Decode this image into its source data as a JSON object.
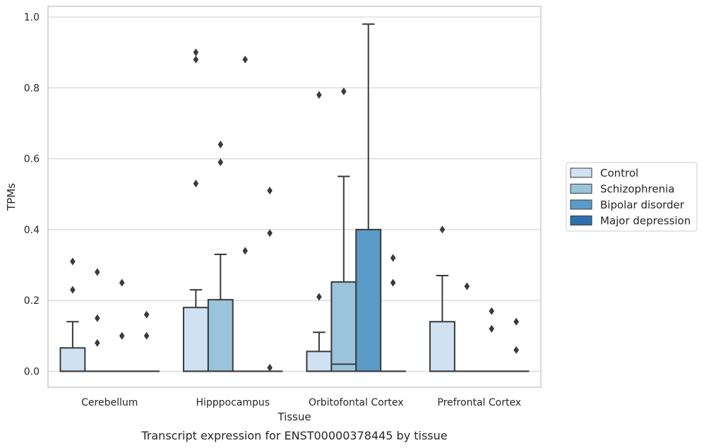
{
  "caption": "Transcript expression for ENST00000378445 by tissue",
  "chart_data": {
    "type": "box",
    "xlabel": "Tissue",
    "ylabel": "TPMs",
    "ylim": [
      -0.045,
      1.03
    ],
    "yticks": [
      "0.0",
      "0.2",
      "0.4",
      "0.6",
      "0.8",
      "1.0"
    ],
    "ytick_values": [
      0.0,
      0.2,
      0.4,
      0.6,
      0.8,
      1.0
    ],
    "grid": true,
    "legend_position": "right",
    "categories": [
      "Cerebellum",
      "Hipppocampus",
      "Orbitofontal Cortex",
      "Prefrontal Cortex"
    ],
    "series": [
      {
        "name": "Control",
        "color": "#d0e1f2",
        "boxes": [
          {
            "q1": 0.0,
            "median": 0.0,
            "q3": 0.066,
            "whisker_low": 0.0,
            "whisker_high": 0.14,
            "outliers": [
              0.31,
              0.23
            ]
          },
          {
            "q1": 0.0,
            "median": 0.0,
            "q3": 0.18,
            "whisker_low": 0.0,
            "whisker_high": 0.23,
            "outliers": [
              0.9,
              0.88,
              0.53
            ]
          },
          {
            "q1": 0.0,
            "median": 0.0,
            "q3": 0.056,
            "whisker_low": 0.0,
            "whisker_high": 0.11,
            "outliers": [
              0.78,
              0.21
            ]
          },
          {
            "q1": 0.0,
            "median": 0.0,
            "q3": 0.14,
            "whisker_low": 0.0,
            "whisker_high": 0.27,
            "outliers": [
              0.4
            ]
          }
        ]
      },
      {
        "name": "Schizophrenia",
        "color": "#9ac3dc",
        "boxes": [
          {
            "q1": 0.0,
            "median": 0.0,
            "q3": 0.0,
            "whisker_low": 0.0,
            "whisker_high": 0.0,
            "outliers": [
              0.28,
              0.15,
              0.08
            ]
          },
          {
            "q1": 0.0,
            "median": 0.0,
            "q3": 0.202,
            "whisker_low": 0.0,
            "whisker_high": 0.33,
            "outliers": [
              0.64,
              0.59
            ]
          },
          {
            "q1": 0.0,
            "median": 0.02,
            "q3": 0.252,
            "whisker_low": 0.0,
            "whisker_high": 0.55,
            "outliers": [
              0.79
            ]
          },
          {
            "q1": 0.0,
            "median": 0.0,
            "q3": 0.0,
            "whisker_low": 0.0,
            "whisker_high": 0.0,
            "outliers": [
              0.24
            ]
          }
        ]
      },
      {
        "name": "Bipolar disorder",
        "color": "#5a9bc8",
        "boxes": [
          {
            "q1": 0.0,
            "median": 0.0,
            "q3": 0.0,
            "whisker_low": 0.0,
            "whisker_high": 0.0,
            "outliers": [
              0.25,
              0.1
            ]
          },
          {
            "q1": 0.0,
            "median": 0.0,
            "q3": 0.0,
            "whisker_low": 0.0,
            "whisker_high": 0.0,
            "outliers": [
              0.88,
              0.34
            ]
          },
          {
            "q1": 0.0,
            "median": 0.0,
            "q3": 0.4,
            "whisker_low": 0.0,
            "whisker_high": 0.98,
            "outliers": []
          },
          {
            "q1": 0.0,
            "median": 0.0,
            "q3": 0.0,
            "whisker_low": 0.0,
            "whisker_high": 0.0,
            "outliers": [
              0.17,
              0.12
            ]
          }
        ]
      },
      {
        "name": "Major depression",
        "color": "#2f6fae",
        "boxes": [
          {
            "q1": 0.0,
            "median": 0.0,
            "q3": 0.0,
            "whisker_low": 0.0,
            "whisker_high": 0.0,
            "outliers": [
              0.16,
              0.1
            ]
          },
          {
            "q1": 0.0,
            "median": 0.0,
            "q3": 0.0,
            "whisker_low": 0.0,
            "whisker_high": 0.0,
            "outliers": [
              0.51,
              0.39,
              0.01
            ]
          },
          {
            "q1": 0.0,
            "median": 0.0,
            "q3": 0.0,
            "whisker_low": 0.0,
            "whisker_high": 0.0,
            "outliers": [
              0.32,
              0.25
            ]
          },
          {
            "q1": 0.0,
            "median": 0.0,
            "q3": 0.0,
            "whisker_low": 0.0,
            "whisker_high": 0.0,
            "outliers": [
              0.14,
              0.06
            ]
          }
        ]
      }
    ]
  }
}
